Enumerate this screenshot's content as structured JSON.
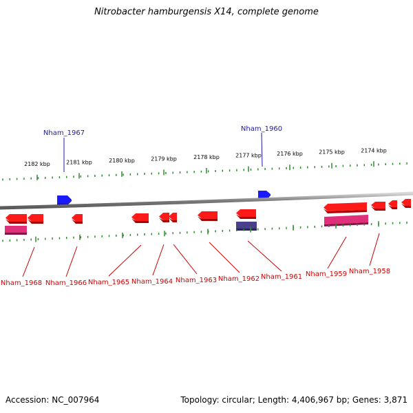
{
  "title": "Nitrobacter hamburgensis X14, complete genome",
  "footer": {
    "accession": "Accession: NC_007964",
    "summary": "Topology: circular; Length: 4,406,967 bp; Genes: 3,871"
  },
  "colors": {
    "forward_gene": "#1a1aff",
    "reverse_gene": "#ff1a1a",
    "rna_feature": "#e0307a",
    "other_feature": "#4a3f8a",
    "backbone": "#8a8a8a",
    "ticks": "#2e8b2e",
    "label_forward": "#1a1aa0",
    "label_reverse": "#cc0000"
  },
  "upper_ruler": [
    "2182 kbp",
    "2181 kbp",
    "2180 kbp",
    "2179 kbp",
    "2178 kbp",
    "2177 kbp",
    "2176 kbp",
    "2175 kbp",
    "2174 kbp"
  ],
  "upper_labels": [
    "Nham_1967",
    "Nham_1960"
  ],
  "lower_labels": [
    "Nham_1968",
    "Nham_1966",
    "Nham_1965",
    "Nham_1964",
    "Nham_1963",
    "Nham_1962",
    "Nham_1961",
    "Nham_1959",
    "Nham_1958"
  ]
}
